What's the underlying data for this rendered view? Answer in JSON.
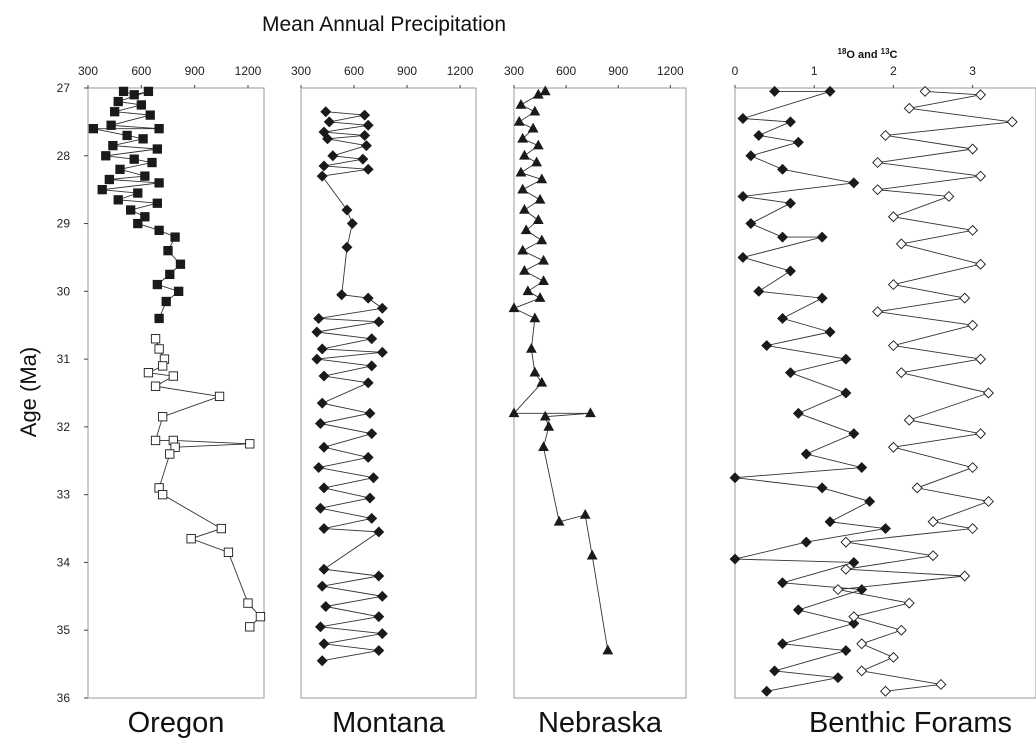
{
  "title": "Mean Annual Precipitation",
  "y_axis_label": "Age (Ma)",
  "chart_data": [
    {
      "panel": "Oregon",
      "type": "scatter",
      "label": "Oregon",
      "x_ticks": [
        300,
        600,
        900,
        1200
      ],
      "xlim": [
        300,
        1290
      ],
      "ylim": [
        27,
        36
      ],
      "y_ticks": [
        27,
        28,
        29,
        30,
        31,
        32,
        33,
        34,
        35,
        36
      ],
      "series": [
        {
          "marker": "filled-square",
          "points": [
            [
              500,
              27.05
            ],
            [
              560,
              27.1
            ],
            [
              640,
              27.05
            ],
            [
              470,
              27.2
            ],
            [
              600,
              27.25
            ],
            [
              450,
              27.35
            ],
            [
              650,
              27.4
            ],
            [
              430,
              27.55
            ],
            [
              700,
              27.6
            ],
            [
              330,
              27.6
            ],
            [
              520,
              27.7
            ],
            [
              610,
              27.75
            ],
            [
              440,
              27.85
            ],
            [
              690,
              27.9
            ],
            [
              400,
              28.0
            ],
            [
              560,
              28.05
            ],
            [
              660,
              28.1
            ],
            [
              480,
              28.2
            ],
            [
              620,
              28.3
            ],
            [
              420,
              28.35
            ],
            [
              700,
              28.4
            ],
            [
              380,
              28.5
            ],
            [
              580,
              28.55
            ],
            [
              470,
              28.65
            ],
            [
              690,
              28.7
            ],
            [
              540,
              28.8
            ],
            [
              620,
              28.9
            ],
            [
              580,
              29.0
            ],
            [
              700,
              29.1
            ],
            [
              790,
              29.2
            ],
            [
              750,
              29.4
            ],
            [
              820,
              29.6
            ],
            [
              760,
              29.75
            ],
            [
              690,
              29.9
            ],
            [
              810,
              30.0
            ],
            [
              740,
              30.15
            ],
            [
              700,
              30.4
            ]
          ]
        },
        {
          "marker": "open-square",
          "points": [
            [
              680,
              30.7
            ],
            [
              700,
              30.85
            ],
            [
              730,
              31.0
            ],
            [
              720,
              31.1
            ],
            [
              640,
              31.2
            ],
            [
              780,
              31.25
            ],
            [
              680,
              31.4
            ],
            [
              1040,
              31.55
            ],
            [
              720,
              31.85
            ],
            [
              680,
              32.2
            ],
            [
              780,
              32.2
            ],
            [
              1210,
              32.25
            ],
            [
              790,
              32.3
            ],
            [
              760,
              32.4
            ],
            [
              700,
              32.9
            ],
            [
              720,
              33.0
            ],
            [
              1050,
              33.5
            ],
            [
              880,
              33.65
            ],
            [
              1090,
              33.85
            ],
            [
              1200,
              34.6
            ],
            [
              1270,
              34.8
            ],
            [
              1210,
              34.95
            ]
          ]
        }
      ]
    },
    {
      "panel": "Montana",
      "type": "scatter",
      "label": "Montana",
      "x_ticks": [
        300,
        600,
        900,
        1200
      ],
      "xlim": [
        300,
        1290
      ],
      "ylim": [
        27,
        36
      ],
      "series": [
        {
          "marker": "filled-diamond",
          "points": [
            [
              440,
              27.35
            ],
            [
              660,
              27.4
            ],
            [
              460,
              27.5
            ],
            [
              680,
              27.55
            ],
            [
              430,
              27.65
            ],
            [
              660,
              27.7
            ],
            [
              450,
              27.75
            ],
            [
              670,
              27.85
            ],
            [
              480,
              28.0
            ],
            [
              650,
              28.05
            ],
            [
              430,
              28.15
            ],
            [
              680,
              28.2
            ],
            [
              420,
              28.3
            ],
            [
              560,
              28.8
            ],
            [
              590,
              29.0
            ],
            [
              560,
              29.35
            ],
            [
              530,
              30.05
            ],
            [
              680,
              30.1
            ],
            [
              760,
              30.25
            ],
            [
              400,
              30.4
            ],
            [
              740,
              30.45
            ],
            [
              390,
              30.6
            ],
            [
              700,
              30.7
            ],
            [
              420,
              30.85
            ],
            [
              760,
              30.9
            ],
            [
              390,
              31.0
            ],
            [
              700,
              31.1
            ],
            [
              430,
              31.25
            ],
            [
              680,
              31.35
            ],
            [
              420,
              31.65
            ],
            [
              690,
              31.8
            ],
            [
              410,
              31.95
            ],
            [
              700,
              32.1
            ],
            [
              430,
              32.3
            ],
            [
              680,
              32.45
            ],
            [
              400,
              32.6
            ],
            [
              710,
              32.75
            ],
            [
              430,
              32.9
            ],
            [
              690,
              33.05
            ],
            [
              410,
              33.2
            ],
            [
              700,
              33.35
            ],
            [
              430,
              33.5
            ],
            [
              740,
              33.55
            ],
            [
              430,
              34.1
            ],
            [
              740,
              34.2
            ],
            [
              420,
              34.35
            ],
            [
              760,
              34.5
            ],
            [
              440,
              34.65
            ],
            [
              740,
              34.8
            ],
            [
              410,
              34.95
            ],
            [
              760,
              35.05
            ],
            [
              430,
              35.2
            ],
            [
              740,
              35.3
            ],
            [
              420,
              35.45
            ]
          ]
        }
      ]
    },
    {
      "panel": "Nebraska",
      "type": "scatter",
      "label": "Nebraska",
      "x_ticks": [
        300,
        600,
        900,
        1200
      ],
      "xlim": [
        300,
        1290
      ],
      "ylim": [
        27,
        36
      ],
      "series": [
        {
          "marker": "filled-triangle",
          "points": [
            [
              480,
              27.05
            ],
            [
              440,
              27.1
            ],
            [
              340,
              27.25
            ],
            [
              420,
              27.35
            ],
            [
              330,
              27.5
            ],
            [
              410,
              27.6
            ],
            [
              350,
              27.75
            ],
            [
              440,
              27.85
            ],
            [
              360,
              28.0
            ],
            [
              430,
              28.1
            ],
            [
              340,
              28.25
            ],
            [
              460,
              28.35
            ],
            [
              350,
              28.5
            ],
            [
              450,
              28.65
            ],
            [
              360,
              28.8
            ],
            [
              440,
              28.95
            ],
            [
              370,
              29.1
            ],
            [
              460,
              29.25
            ],
            [
              350,
              29.4
            ],
            [
              470,
              29.55
            ],
            [
              360,
              29.7
            ],
            [
              470,
              29.85
            ],
            [
              380,
              30.0
            ],
            [
              450,
              30.1
            ],
            [
              300,
              30.25
            ],
            [
              420,
              30.4
            ],
            [
              400,
              30.85
            ],
            [
              420,
              31.2
            ],
            [
              460,
              31.35
            ],
            [
              300,
              31.8
            ],
            [
              740,
              31.8
            ],
            [
              480,
              31.85
            ],
            [
              500,
              32.0
            ],
            [
              470,
              32.3
            ],
            [
              560,
              33.4
            ],
            [
              710,
              33.3
            ],
            [
              750,
              33.9
            ],
            [
              840,
              35.3
            ]
          ]
        }
      ]
    },
    {
      "panel": "Benthic Forams",
      "type": "scatter",
      "label": "Benthic Forams",
      "title": "18O and 13C",
      "x_ticks": [
        0,
        1,
        2,
        3
      ],
      "xlim": [
        0,
        3.8
      ],
      "ylim": [
        27,
        36
      ],
      "series": [
        {
          "name": "18O",
          "marker": "filled-diamond",
          "points": [
            [
              0.5,
              27.05
            ],
            [
              1.2,
              27.05
            ],
            [
              0.1,
              27.45
            ],
            [
              0.7,
              27.5
            ],
            [
              0.3,
              27.7
            ],
            [
              0.8,
              27.8
            ],
            [
              0.2,
              28.0
            ],
            [
              0.6,
              28.2
            ],
            [
              1.5,
              28.4
            ],
            [
              0.1,
              28.6
            ],
            [
              0.7,
              28.7
            ],
            [
              0.2,
              29.0
            ],
            [
              0.6,
              29.2
            ],
            [
              1.1,
              29.2
            ],
            [
              0.1,
              29.5
            ],
            [
              0.7,
              29.7
            ],
            [
              0.3,
              30.0
            ],
            [
              1.1,
              30.1
            ],
            [
              0.6,
              30.4
            ],
            [
              1.2,
              30.6
            ],
            [
              0.4,
              30.8
            ],
            [
              1.4,
              31.0
            ],
            [
              0.7,
              31.2
            ],
            [
              1.4,
              31.5
            ],
            [
              0.8,
              31.8
            ],
            [
              1.5,
              32.1
            ],
            [
              0.9,
              32.4
            ],
            [
              1.6,
              32.6
            ],
            [
              0.0,
              32.75
            ],
            [
              1.1,
              32.9
            ],
            [
              1.7,
              33.1
            ],
            [
              1.2,
              33.4
            ],
            [
              1.9,
              33.5
            ],
            [
              0.9,
              33.7
            ],
            [
              0.0,
              33.95
            ],
            [
              1.5,
              34.0
            ],
            [
              0.6,
              34.3
            ],
            [
              1.6,
              34.4
            ],
            [
              0.8,
              34.7
            ],
            [
              1.5,
              34.9
            ],
            [
              0.6,
              35.2
            ],
            [
              1.4,
              35.3
            ],
            [
              0.5,
              35.6
            ],
            [
              1.3,
              35.7
            ],
            [
              0.4,
              35.9
            ]
          ]
        },
        {
          "name": "13C",
          "marker": "open-diamond",
          "points": [
            [
              2.4,
              27.05
            ],
            [
              3.1,
              27.1
            ],
            [
              2.2,
              27.3
            ],
            [
              3.5,
              27.5
            ],
            [
              1.9,
              27.7
            ],
            [
              3.0,
              27.9
            ],
            [
              1.8,
              28.1
            ],
            [
              3.1,
              28.3
            ],
            [
              1.8,
              28.5
            ],
            [
              2.7,
              28.6
            ],
            [
              2.0,
              28.9
            ],
            [
              3.0,
              29.1
            ],
            [
              2.1,
              29.3
            ],
            [
              3.1,
              29.6
            ],
            [
              2.0,
              29.9
            ],
            [
              2.9,
              30.1
            ],
            [
              1.8,
              30.3
            ],
            [
              3.0,
              30.5
            ],
            [
              2.0,
              30.8
            ],
            [
              3.1,
              31.0
            ],
            [
              2.1,
              31.2
            ],
            [
              3.2,
              31.5
            ],
            [
              2.2,
              31.9
            ],
            [
              3.1,
              32.1
            ],
            [
              2.0,
              32.3
            ],
            [
              3.0,
              32.6
            ],
            [
              2.3,
              32.9
            ],
            [
              3.2,
              33.1
            ],
            [
              2.5,
              33.4
            ],
            [
              3.0,
              33.5
            ],
            [
              1.4,
              33.7
            ],
            [
              2.5,
              33.9
            ],
            [
              1.4,
              34.1
            ],
            [
              2.9,
              34.2
            ],
            [
              1.3,
              34.4
            ],
            [
              2.2,
              34.6
            ],
            [
              1.5,
              34.8
            ],
            [
              2.1,
              35.0
            ],
            [
              1.6,
              35.2
            ],
            [
              2.0,
              35.4
            ],
            [
              1.6,
              35.6
            ],
            [
              2.6,
              35.8
            ],
            [
              1.9,
              35.9
            ]
          ]
        }
      ]
    }
  ]
}
